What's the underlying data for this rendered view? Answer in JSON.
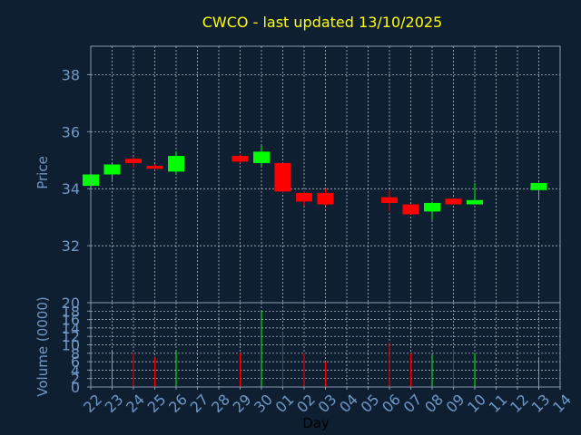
{
  "colors": {
    "background": "#0f1f32",
    "frame": "#8a9bb0",
    "grid": "#c8d0da",
    "title": "#ffff00",
    "axis_text": "#6f98c6",
    "tick_text": "#6f98c6",
    "day_label": "#000000",
    "up": "#00ff00",
    "down": "#ff0000"
  },
  "chart_data": [
    {
      "type": "candlestick",
      "title": "CWCO - last updated 13/10/2025",
      "ylabel": "Price",
      "ylim": [
        30,
        39
      ],
      "yticks": [
        32,
        34,
        36,
        38
      ],
      "grid": true,
      "x_labels": [
        "22",
        "23",
        "24",
        "25",
        "26",
        "27",
        "28",
        "29",
        "30",
        "01",
        "02",
        "03",
        "04",
        "05",
        "06",
        "07",
        "08",
        "09",
        "10",
        "11",
        "12",
        "13",
        "14"
      ],
      "candles": [
        {
          "x": "22",
          "open": 34.1,
          "high": 34.6,
          "low": 34.1,
          "close": 34.5
        },
        {
          "x": "23",
          "open": 34.5,
          "high": 34.9,
          "low": 34.3,
          "close": 34.85
        },
        {
          "x": "24",
          "open": 35.05,
          "high": 35.1,
          "low": 34.75,
          "close": 34.9
        },
        {
          "x": "25",
          "open": 34.8,
          "high": 34.85,
          "low": 34.7,
          "close": 34.7
        },
        {
          "x": "26",
          "open": 34.6,
          "high": 35.3,
          "low": 34.5,
          "close": 35.15
        },
        {
          "x": "29",
          "open": 35.15,
          "high": 35.2,
          "low": 34.9,
          "close": 34.95
        },
        {
          "x": "30",
          "open": 34.9,
          "high": 35.5,
          "low": 34.8,
          "close": 35.3
        },
        {
          "x": "01",
          "open": 34.9,
          "high": 34.9,
          "low": 33.85,
          "close": 33.9
        },
        {
          "x": "02",
          "open": 33.85,
          "high": 33.9,
          "low": 33.4,
          "close": 33.55
        },
        {
          "x": "03",
          "open": 33.85,
          "high": 34.0,
          "low": 33.4,
          "close": 33.45
        },
        {
          "x": "06",
          "open": 33.7,
          "high": 33.95,
          "low": 33.2,
          "close": 33.5
        },
        {
          "x": "07",
          "open": 33.45,
          "high": 33.45,
          "low": 33.1,
          "close": 33.1
        },
        {
          "x": "08",
          "open": 33.2,
          "high": 33.55,
          "low": 32.9,
          "close": 33.5
        },
        {
          "x": "09",
          "open": 33.65,
          "high": 33.65,
          "low": 33.45,
          "close": 33.45
        },
        {
          "x": "10",
          "open": 33.45,
          "high": 34.2,
          "low": 33.45,
          "close": 33.6
        },
        {
          "x": "13",
          "open": 33.95,
          "high": 34.2,
          "low": 33.65,
          "close": 34.2
        }
      ]
    },
    {
      "type": "bar",
      "ylabel": "Volume (0000)",
      "xlabel": "Day",
      "ylim": [
        0,
        20
      ],
      "yticks": [
        0,
        2,
        4,
        6,
        8,
        10,
        12,
        14,
        16,
        18,
        20
      ],
      "grid": true,
      "categories": [
        "22",
        "23",
        "24",
        "25",
        "26",
        "29",
        "30",
        "01",
        "02",
        "03",
        "06",
        "07",
        "08",
        "09",
        "10",
        "13"
      ],
      "values": [
        0,
        8.5,
        8,
        7,
        8.5,
        8,
        18,
        13,
        8,
        6,
        10.5,
        8,
        7.5,
        9,
        8,
        7
      ],
      "directions": [
        "up",
        "up",
        "down",
        "down",
        "up",
        "down",
        "up",
        "down",
        "down",
        "down",
        "down",
        "down",
        "up",
        "down",
        "up",
        "up"
      ]
    }
  ]
}
